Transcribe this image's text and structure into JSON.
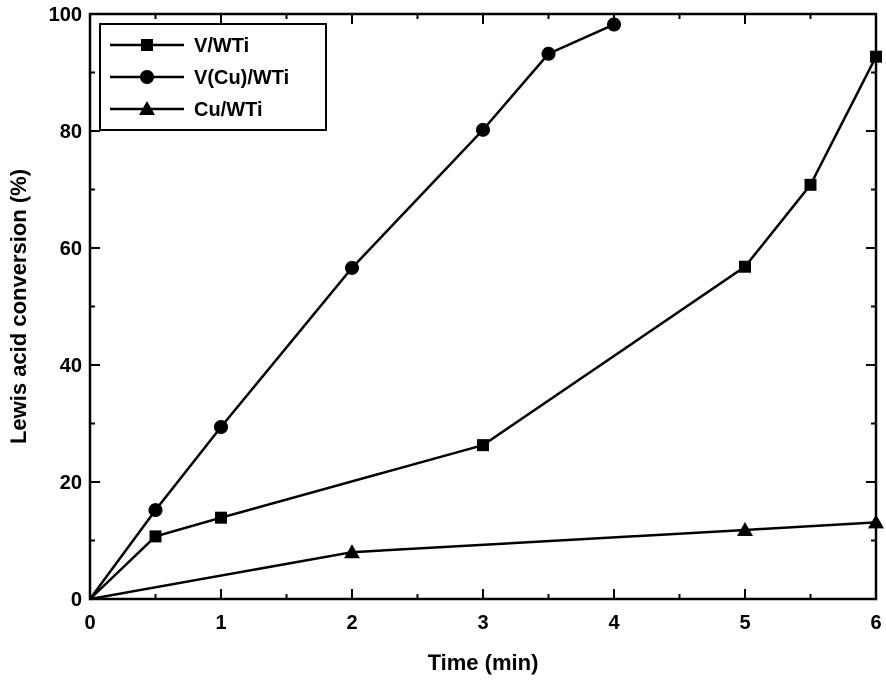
{
  "chart_data": {
    "type": "line",
    "xlabel": "Time (min)",
    "ylabel": "Lewis acid conversion (%)",
    "xlim": [
      0,
      6
    ],
    "ylim": [
      0,
      100
    ],
    "xticks": [
      0,
      1,
      2,
      3,
      4,
      5,
      6
    ],
    "yticks": [
      0,
      20,
      40,
      60,
      80,
      100
    ],
    "grid": false,
    "legend_position": "top-left",
    "series": [
      {
        "name": "V/WTi",
        "marker": "square",
        "x": [
          0,
          0.5,
          1,
          3,
          5,
          5.5,
          6
        ],
        "y": [
          0,
          10.7,
          13.9,
          26.3,
          56.8,
          70.8,
          92.7
        ]
      },
      {
        "name": "V(Cu)/WTi",
        "marker": "circle",
        "x": [
          0,
          0.5,
          1,
          2,
          3,
          3.5,
          4
        ],
        "y": [
          0,
          15.2,
          29.4,
          56.6,
          80.2,
          93.2,
          98.2
        ]
      },
      {
        "name": "Cu/WTi",
        "marker": "triangle",
        "x": [
          0,
          2,
          5,
          6
        ],
        "y": [
          0,
          8.0,
          11.8,
          13.1
        ]
      }
    ]
  }
}
